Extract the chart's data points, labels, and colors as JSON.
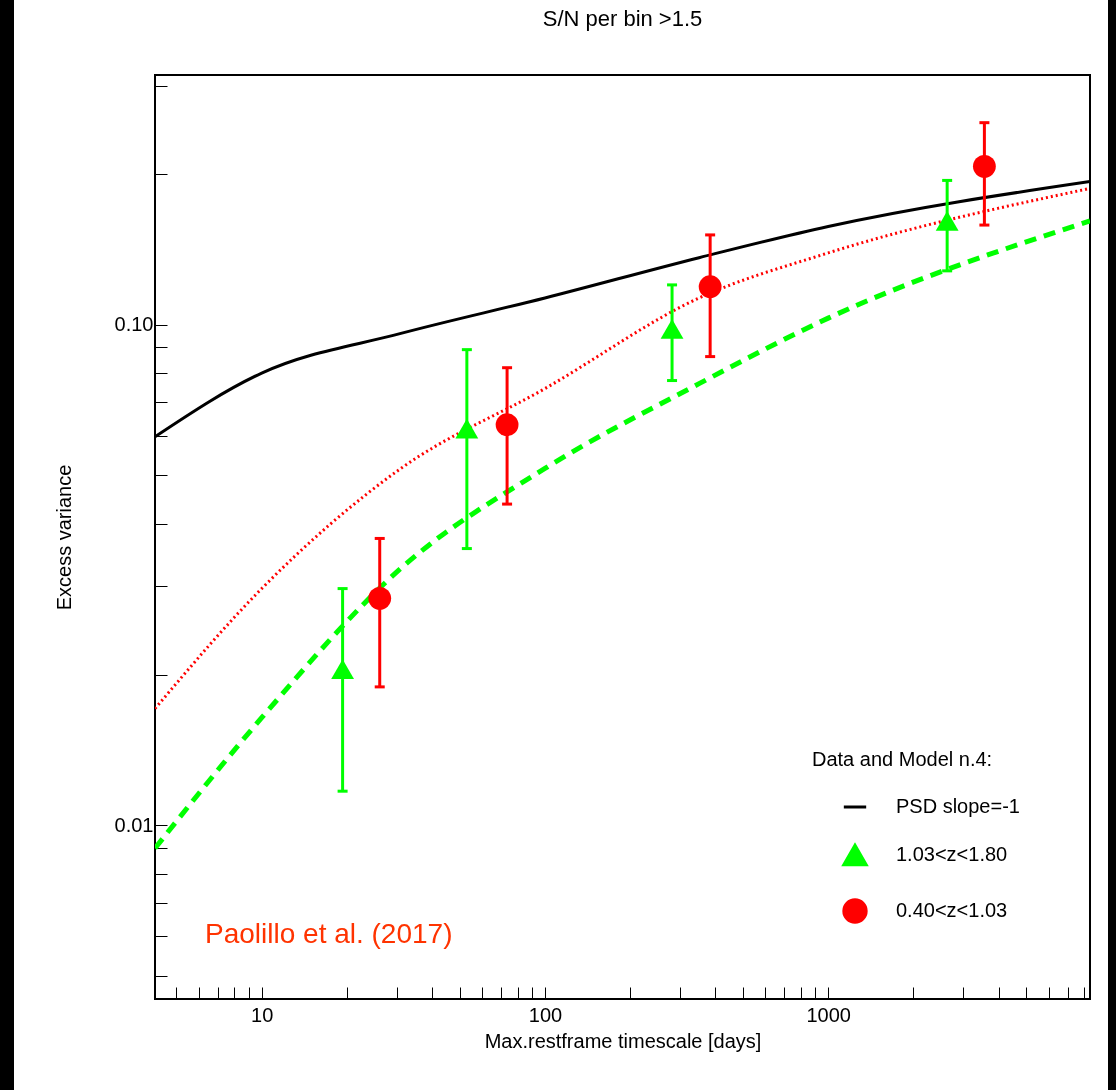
{
  "chart_data": {
    "type": "scatter",
    "title": "S/N per bin >1.5",
    "xlabel": "Max.restframe timescale [days]",
    "ylabel": "Excess variance",
    "legend_title": "Data and Model n.4:",
    "log": "xy",
    "grid": false,
    "legend": "bottom right",
    "xlim": [
      4.2,
      8400
    ],
    "ylim": [
      0.0045,
      0.315
    ],
    "xticks": [
      {
        "value": 5,
        "label": null
      },
      {
        "value": 6,
        "label": null
      },
      {
        "value": 7,
        "label": null
      },
      {
        "value": 8,
        "label": null
      },
      {
        "value": 9,
        "label": null
      },
      10,
      {
        "value": 20,
        "label": null
      },
      {
        "value": 30,
        "label": null
      },
      {
        "value": 40,
        "label": null
      },
      {
        "value": 50,
        "label": null
      },
      {
        "value": 60,
        "label": null
      },
      {
        "value": 70,
        "label": null
      },
      {
        "value": 80,
        "label": null
      },
      {
        "value": 90,
        "label": null
      },
      100,
      {
        "value": 200,
        "label": null
      },
      {
        "value": 300,
        "label": null
      },
      {
        "value": 400,
        "label": null
      },
      {
        "value": 500,
        "label": null
      },
      {
        "value": 600,
        "label": null
      },
      {
        "value": 700,
        "label": null
      },
      {
        "value": 800,
        "label": null
      },
      {
        "value": 900,
        "label": null
      },
      1000,
      {
        "value": 2000,
        "label": null
      },
      {
        "value": 3000,
        "label": null
      },
      {
        "value": 4000,
        "label": null
      },
      {
        "value": 5000,
        "label": null
      },
      {
        "value": 6000,
        "label": null
      },
      {
        "value": 7000,
        "label": null
      },
      {
        "value": 8000,
        "label": null
      }
    ],
    "yticks": [
      {
        "value": 0.005,
        "label": null
      },
      {
        "value": 0.006,
        "label": null
      },
      {
        "value": 0.007,
        "label": null
      },
      {
        "value": 0.008,
        "label": null
      },
      {
        "value": 0.009,
        "label": null
      },
      0.01,
      {
        "value": 0.02,
        "label": null
      },
      {
        "value": 0.03,
        "label": null
      },
      {
        "value": 0.04,
        "label": null
      },
      {
        "value": 0.05,
        "label": null
      },
      {
        "value": 0.06,
        "label": null
      },
      {
        "value": 0.07,
        "label": null
      },
      {
        "value": 0.08,
        "label": null
      },
      {
        "value": 0.09,
        "label": null
      },
      {
        "value": 0.1,
        "label": "0.10"
      },
      {
        "value": 0.2,
        "label": null
      },
      {
        "value": 0.3,
        "label": null
      }
    ],
    "series": [
      {
        "name": "PSD slope=-1",
        "type": "line",
        "line_style": "solid",
        "color": "#000000",
        "x": [
          4.2,
          10,
          31,
          100,
          350,
          1000,
          8400
        ],
        "values": [
          0.0597,
          0.08,
          0.096,
          0.113,
          0.136,
          0.157,
          0.193
        ]
      },
      {
        "type": "line",
        "line_style": "dotted",
        "color": "#ff0000",
        "x": [
          4.2,
          10,
          31,
          100,
          350,
          1000,
          8400
        ],
        "values": [
          0.0171,
          0.0297,
          0.0516,
          0.0745,
          0.113,
          0.139,
          0.187
        ]
      },
      {
        "type": "line",
        "line_style": "dashed",
        "color": "#00ff00",
        "x": [
          4.2,
          10,
          31,
          100,
          350,
          1000,
          8400
        ],
        "values": [
          0.009,
          0.0164,
          0.0326,
          0.0516,
          0.0762,
          0.103,
          0.161
        ]
      },
      {
        "name": "1.03<z<1.80",
        "marker": "triangle",
        "color": "#00ff00",
        "x": [
          19.3,
          53,
          281,
          2630
        ],
        "values": [
          0.0205,
          0.062,
          0.098,
          0.161
        ],
        "errors": [
          [
            0.0117,
            0.0297
          ],
          [
            0.0357,
            0.0891
          ],
          [
            0.0773,
            0.12
          ],
          [
            0.128,
            0.194
          ]
        ]
      },
      {
        "name": "0.40<z<1.03",
        "marker": "circle",
        "color": "#ff0000",
        "x": [
          26.1,
          73.5,
          383,
          3560
        ],
        "values": [
          0.0284,
          0.0631,
          0.119,
          0.207
        ],
        "errors": [
          [
            0.0189,
            0.0374
          ],
          [
            0.0438,
            0.082
          ],
          [
            0.0863,
            0.151
          ],
          [
            0.158,
            0.253
          ]
        ]
      }
    ],
    "annotations": [
      "Paolillo et al. (2017)"
    ]
  }
}
